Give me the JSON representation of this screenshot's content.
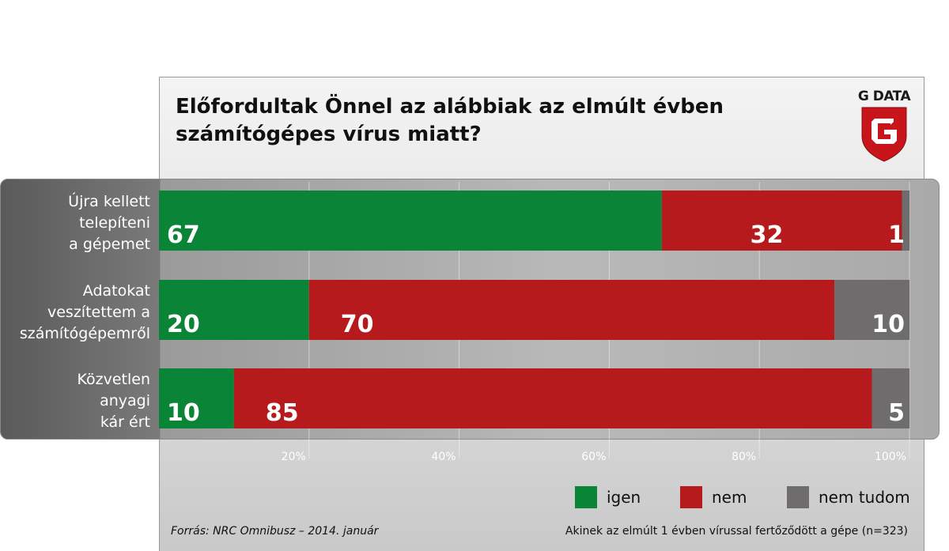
{
  "title_line1": "Előfordultak Önnel az alábbiak az elmúlt évben",
  "title_line2": "számítógépes vírus miatt?",
  "logo_text": "G DATA",
  "colors": {
    "igen": "#0a8436",
    "nem": "#b61a1c",
    "nem_tudom": "#6e6c6d"
  },
  "chart_data": {
    "type": "bar",
    "orientation": "horizontal",
    "stacked": true,
    "categories": [
      [
        "Újra kellett",
        "telepíteni",
        "a gépemet"
      ],
      [
        "Adatokat",
        "veszítettem a",
        "számítógépemről"
      ],
      [
        "Közvetlen",
        "anyagi",
        "kár ért"
      ]
    ],
    "series": [
      {
        "name": "igen",
        "values": [
          67,
          20,
          10
        ]
      },
      {
        "name": "nem",
        "values": [
          32,
          70,
          85
        ]
      },
      {
        "name": "nem tudom",
        "values": [
          1,
          10,
          5
        ]
      }
    ],
    "xlim": [
      0,
      100
    ],
    "x_ticks": [
      "20%",
      "40%",
      "60%",
      "80%",
      "100%"
    ],
    "grid": true,
    "legend": "bottom-right"
  },
  "legend": [
    {
      "label": "igen",
      "color": "#0a8436"
    },
    {
      "label": "nem",
      "color": "#b61a1c"
    },
    {
      "label": "nem tudom",
      "color": "#6e6c6d"
    }
  ],
  "footer": {
    "source": "Forrás: NRC Omnibusz – 2014. január",
    "note": "Akinek az elmúlt 1 évben vírussal fertőződött a gépe (n=323)"
  }
}
